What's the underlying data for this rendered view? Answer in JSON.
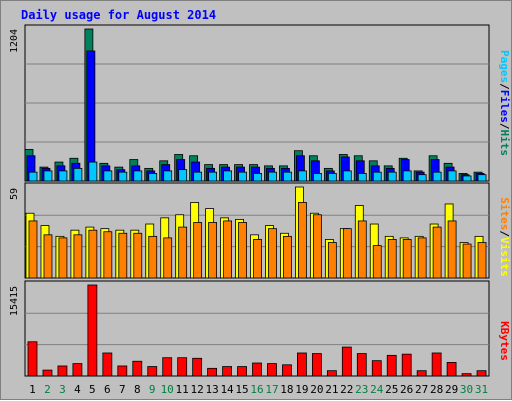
{
  "title": "Daily usage for August 2014",
  "colors": {
    "background": "#c0c0c0",
    "plot": "#c0c0c0",
    "title": "#0000ff",
    "hits": "#00805c",
    "files": "#0000ff",
    "pages": "#00c8ff",
    "visits": "#ffff00",
    "sites": "#ff8000",
    "kbytes": "#ff0000",
    "weekend_label": "#008040",
    "weekday_label": "#000000"
  },
  "chart_data": [
    {
      "type": "bar",
      "title": "Daily usage for August 2014",
      "y_max_label": "1204",
      "ylim": [
        0,
        1204
      ],
      "legend": [
        "Pages",
        "Files",
        "Hits"
      ],
      "legend_placement": "right",
      "grid": true,
      "categories": [
        "1",
        "2",
        "3",
        "4",
        "5",
        "6",
        "7",
        "8",
        "9",
        "10",
        "11",
        "12",
        "13",
        "14",
        "15",
        "16",
        "17",
        "18",
        "19",
        "20",
        "21",
        "22",
        "23",
        "24",
        "25",
        "26",
        "27",
        "28",
        "29",
        "30",
        "31"
      ],
      "weekend_days": [
        "2",
        "3",
        "9",
        "10",
        "16",
        "17",
        "23",
        "24",
        "30",
        "31"
      ],
      "series": [
        {
          "name": "Hits",
          "values": [
            250,
            110,
            150,
            180,
            1204,
            140,
            110,
            170,
            100,
            160,
            210,
            200,
            130,
            130,
            130,
            130,
            120,
            120,
            240,
            200,
            100,
            210,
            200,
            160,
            120,
            180,
            80,
            200,
            140,
            60,
            70
          ]
        },
        {
          "name": "Files",
          "values": [
            200,
            100,
            120,
            140,
            1030,
            120,
            90,
            120,
            80,
            130,
            170,
            150,
            100,
            110,
            110,
            110,
            100,
            100,
            200,
            160,
            80,
            190,
            160,
            120,
            100,
            170,
            70,
            170,
            110,
            50,
            60
          ]
        },
        {
          "name": "Pages",
          "values": [
            70,
            80,
            80,
            100,
            150,
            80,
            70,
            80,
            60,
            80,
            90,
            70,
            70,
            80,
            70,
            60,
            70,
            70,
            80,
            60,
            60,
            80,
            60,
            70,
            70,
            80,
            50,
            70,
            80,
            40,
            50
          ]
        }
      ]
    },
    {
      "type": "bar",
      "y_max_label": "59",
      "ylim": [
        0,
        59
      ],
      "legend": [
        "Sites",
        "Visits"
      ],
      "legend_placement": "right",
      "grid": true,
      "categories": [
        "1",
        "2",
        "3",
        "4",
        "5",
        "6",
        "7",
        "8",
        "9",
        "10",
        "11",
        "12",
        "13",
        "14",
        "15",
        "16",
        "17",
        "18",
        "19",
        "20",
        "21",
        "22",
        "23",
        "24",
        "25",
        "26",
        "27",
        "28",
        "29",
        "30",
        "31"
      ],
      "series": [
        {
          "name": "Visits",
          "values": [
            42,
            34,
            27,
            31,
            33,
            32,
            31,
            31,
            35,
            39,
            41,
            49,
            45,
            39,
            38,
            28,
            34,
            29,
            59,
            42,
            25,
            32,
            47,
            35,
            27,
            26,
            27,
            35,
            48,
            23,
            27
          ]
        },
        {
          "name": "Sites",
          "values": [
            37,
            28,
            26,
            28,
            31,
            30,
            29,
            29,
            27,
            26,
            33,
            36,
            36,
            37,
            36,
            25,
            32,
            27,
            49,
            41,
            23,
            32,
            37,
            21,
            25,
            25,
            26,
            33,
            37,
            22,
            23
          ]
        }
      ]
    },
    {
      "type": "bar",
      "y_max_label": "15415",
      "ylim": [
        0,
        15415
      ],
      "legend": [
        "KBytes"
      ],
      "legend_placement": "right",
      "grid": true,
      "categories": [
        "1",
        "2",
        "3",
        "4",
        "5",
        "6",
        "7",
        "8",
        "9",
        "10",
        "11",
        "12",
        "13",
        "14",
        "15",
        "16",
        "17",
        "18",
        "19",
        "20",
        "21",
        "22",
        "23",
        "24",
        "25",
        "26",
        "27",
        "28",
        "29",
        "30",
        "31"
      ],
      "series": [
        {
          "name": "KBytes",
          "values": [
            5800,
            1000,
            1700,
            2100,
            15415,
            3900,
            1700,
            2500,
            1600,
            3100,
            3100,
            3000,
            1300,
            1600,
            1600,
            2200,
            2100,
            1900,
            3900,
            3800,
            900,
            4900,
            3800,
            2600,
            3500,
            3700,
            900,
            3900,
            2300,
            400,
            900
          ]
        }
      ]
    }
  ]
}
